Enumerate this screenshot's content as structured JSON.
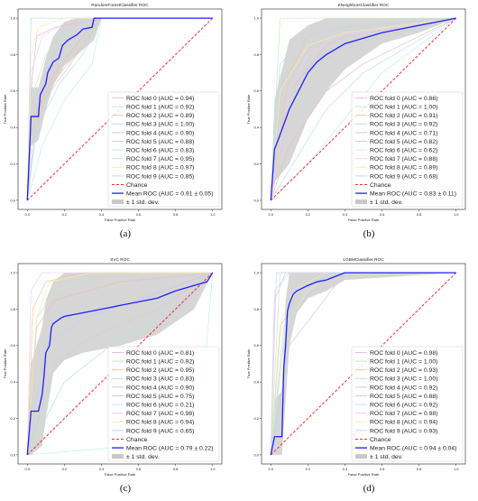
{
  "chart_data": [
    {
      "type": "line",
      "title": "RandomForestClassifier ROC",
      "xlabel": "False Positive Rate",
      "ylabel": "True Positive Rate",
      "xlim": [
        -0.05,
        1.05
      ],
      "ylim": [
        -0.05,
        1.05
      ],
      "xticks": [
        "0.0",
        "0.2",
        "0.4",
        "0.6",
        "0.8",
        "1.0"
      ],
      "yticks": [
        "0.0",
        "0.2",
        "0.4",
        "0.6",
        "0.8",
        "1.0"
      ],
      "legend_placement": "lower-right",
      "caption": "(a)",
      "legend": [
        "ROC fold 0 (AUC = 0.94)",
        "ROC fold 1 (AUC = 0.92)",
        "ROC fold 2 (AUC = 0.89)",
        "ROC fold 3 (AUC = 1.00)",
        "ROC fold 4 (AUC = 0.90)",
        "ROC fold 5 (AUC = 0.88)",
        "ROC fold 6 (AUC = 0.83)",
        "ROC fold 7 (AUC = 0.95)",
        "ROC fold 8 (AUC = 0.97)",
        "ROC fold 9 (AUC = 0.85)",
        "Chance",
        "Mean ROC (AUC = 0.91 ± 0.05)",
        "± 1 std. dev."
      ],
      "mean_roc": {
        "x": [
          0,
          0.02,
          0.06,
          0.07,
          0.1,
          0.11,
          0.13,
          0.14,
          0.17,
          0.19,
          0.2,
          0.22,
          0.27,
          0.3,
          0.35,
          0.36,
          0.4,
          1.0
        ],
        "y": [
          0,
          0.46,
          0.46,
          0.58,
          0.64,
          0.7,
          0.74,
          0.76,
          0.78,
          0.85,
          0.86,
          0.88,
          0.91,
          0.94,
          0.95,
          1.0,
          1.0,
          1.0
        ]
      },
      "std_band": {
        "x": [
          0,
          0.02,
          0.06,
          0.1,
          0.14,
          0.2,
          0.27,
          0.36,
          0.4,
          1.0
        ],
        "lower": [
          0,
          0.3,
          0.33,
          0.5,
          0.63,
          0.74,
          0.8,
          0.88,
          1.0,
          1.0
        ],
        "upper": [
          0,
          0.62,
          0.62,
          0.78,
          0.9,
          0.98,
          1.0,
          1.0,
          1.0,
          1.0
        ]
      },
      "folds": [
        {
          "x": [
            0,
            0.02,
            0.05,
            0.15,
            0.4,
            1
          ],
          "y": [
            0,
            0.6,
            0.9,
            0.95,
            1,
            1
          ]
        },
        {
          "x": [
            0,
            0.02,
            0.1,
            0.2,
            0.35,
            1
          ],
          "y": [
            0,
            0.55,
            0.8,
            0.9,
            1,
            1
          ]
        },
        {
          "x": [
            0,
            0.05,
            0.1,
            0.3,
            0.4,
            1
          ],
          "y": [
            0,
            0.4,
            0.6,
            0.85,
            1,
            1
          ]
        },
        {
          "x": [
            0,
            0.02,
            1
          ],
          "y": [
            0,
            1,
            1
          ]
        },
        {
          "x": [
            0,
            0.03,
            0.15,
            0.3,
            0.38,
            1
          ],
          "y": [
            0,
            0.45,
            0.7,
            0.9,
            1,
            1
          ]
        },
        {
          "x": [
            0,
            0.05,
            0.2,
            0.3,
            0.4,
            1
          ],
          "y": [
            0,
            0.5,
            0.7,
            0.85,
            1,
            1
          ]
        },
        {
          "x": [
            0,
            0.08,
            0.2,
            0.35,
            0.4,
            1
          ],
          "y": [
            0,
            0.3,
            0.55,
            0.75,
            1,
            1
          ]
        },
        {
          "x": [
            0,
            0.02,
            0.08,
            0.25,
            1
          ],
          "y": [
            0,
            0.7,
            0.9,
            1,
            1
          ]
        },
        {
          "x": [
            0,
            0.02,
            0.06,
            0.2,
            1
          ],
          "y": [
            0,
            0.8,
            0.95,
            1,
            1
          ]
        },
        {
          "x": [
            0,
            0.05,
            0.18,
            0.3,
            0.4,
            1
          ],
          "y": [
            0,
            0.4,
            0.65,
            0.8,
            1,
            1
          ]
        }
      ]
    },
    {
      "type": "line",
      "title": "KNeighborsClassifier ROC",
      "xlabel": "False Positive Rate",
      "ylabel": "True Positive Rate",
      "xlim": [
        -0.05,
        1.05
      ],
      "ylim": [
        -0.05,
        1.05
      ],
      "xticks": [
        "0.0",
        "0.2",
        "0.4",
        "0.6",
        "0.8",
        "1.0"
      ],
      "yticks": [
        "0.0",
        "0.2",
        "0.4",
        "0.6",
        "0.8",
        "1.0"
      ],
      "legend_placement": "lower-right",
      "caption": "(b)",
      "legend": [
        "ROC fold 0 (AUC = 0.86)",
        "ROC fold 1 (AUC = 1.00)",
        "ROC fold 2 (AUC = 0.91)",
        "ROC fold 3 (AUC = 0.92)",
        "ROC fold 4 (AUC = 0.71)",
        "ROC fold 5 (AUC = 0.82)",
        "ROC fold 6 (AUC = 0.62)",
        "ROC fold 7 (AUC = 0.88)",
        "ROC fold 8 (AUC = 0.89)",
        "ROC fold 9 (AUC = 0.68)",
        "Chance",
        "Mean ROC (AUC = 0.83 ± 0.11)",
        "± 1 std. dev."
      ],
      "mean_roc": {
        "x": [
          0,
          0.02,
          0.05,
          0.1,
          0.15,
          0.2,
          0.25,
          0.3,
          0.4,
          0.6,
          0.8,
          1.0
        ],
        "y": [
          0,
          0.28,
          0.36,
          0.5,
          0.6,
          0.7,
          0.76,
          0.8,
          0.86,
          0.92,
          0.96,
          1.0
        ]
      },
      "std_band": {
        "x": [
          0,
          0.02,
          0.1,
          0.2,
          0.3,
          0.4,
          0.6,
          0.8,
          1.0
        ],
        "lower": [
          0,
          0.1,
          0.2,
          0.45,
          0.6,
          0.72,
          0.86,
          0.92,
          1.0
        ],
        "upper": [
          0,
          0.55,
          0.88,
          0.96,
          1.0,
          1.0,
          1.0,
          1.0,
          1.0
        ]
      },
      "folds": [
        {
          "x": [
            0,
            0.1,
            0.3,
            0.4,
            1
          ],
          "y": [
            0,
            0.6,
            0.85,
            0.9,
            1
          ]
        },
        {
          "x": [
            0,
            0.05,
            1
          ],
          "y": [
            0,
            1,
            1
          ]
        },
        {
          "x": [
            0,
            0.1,
            0.2,
            0.4,
            1
          ],
          "y": [
            0,
            0.7,
            0.9,
            0.95,
            1
          ]
        },
        {
          "x": [
            0,
            0.05,
            0.2,
            0.4,
            1
          ],
          "y": [
            0,
            0.75,
            0.9,
            0.95,
            1
          ]
        },
        {
          "x": [
            0,
            0.1,
            0.3,
            0.5,
            1
          ],
          "y": [
            0,
            0.3,
            0.6,
            0.75,
            1
          ]
        },
        {
          "x": [
            0,
            0.1,
            0.2,
            0.4,
            1
          ],
          "y": [
            0,
            0.5,
            0.7,
            0.85,
            1
          ]
        },
        {
          "x": [
            0,
            0.2,
            0.4,
            0.6,
            1
          ],
          "y": [
            0,
            0.2,
            0.45,
            0.7,
            1
          ]
        },
        {
          "x": [
            0,
            0.1,
            0.2,
            0.35,
            1
          ],
          "y": [
            0,
            0.6,
            0.8,
            0.9,
            1
          ]
        },
        {
          "x": [
            0,
            0.05,
            0.2,
            0.4,
            1
          ],
          "y": [
            0,
            0.6,
            0.85,
            0.92,
            1
          ]
        },
        {
          "x": [
            0,
            0.15,
            0.3,
            0.5,
            1
          ],
          "y": [
            0,
            0.25,
            0.5,
            0.7,
            1
          ]
        }
      ]
    },
    {
      "type": "line",
      "title": "SVC ROC",
      "xlabel": "False Positive Rate",
      "ylabel": "True Positive Rate",
      "xlim": [
        -0.05,
        1.05
      ],
      "ylim": [
        -0.05,
        1.05
      ],
      "xticks": [
        "0.0",
        "0.2",
        "0.4",
        "0.6",
        "0.8",
        "1.0"
      ],
      "yticks": [
        "0.0",
        "0.2",
        "0.4",
        "0.6",
        "0.8",
        "1.0"
      ],
      "legend_placement": "lower-right",
      "caption": "(c)",
      "legend": [
        "ROC fold 0 (AUC = 0.81)",
        "ROC fold 1 (AUC = 0.92)",
        "ROC fold 2 (AUC = 0.95)",
        "ROC fold 3 (AUC = 0.83)",
        "ROC fold 4 (AUC = 0.90)",
        "ROC fold 5 (AUC = 0.75)",
        "ROC fold 6 (AUC = 0.21)",
        "ROC fold 7 (AUC = 0.98)",
        "ROC fold 8 (AUC = 0.94)",
        "ROC fold 9 (AUC = 0.65)",
        "Chance",
        "Mean ROC (AUC = 0.79 ± 0.22)",
        "± 1 std. dev."
      ],
      "mean_roc": {
        "x": [
          0,
          0.02,
          0.06,
          0.08,
          0.09,
          0.1,
          0.12,
          0.13,
          0.14,
          0.18,
          0.2,
          0.3,
          0.4,
          0.5,
          0.6,
          0.7,
          0.8,
          0.9,
          0.97,
          1.0
        ],
        "y": [
          0,
          0.24,
          0.24,
          0.33,
          0.43,
          0.56,
          0.6,
          0.7,
          0.72,
          0.75,
          0.76,
          0.78,
          0.8,
          0.82,
          0.84,
          0.86,
          0.9,
          0.93,
          0.95,
          1.0
        ]
      },
      "std_band": {
        "x": [
          0,
          0.02,
          0.08,
          0.1,
          0.14,
          0.2,
          0.3,
          0.5,
          0.7,
          0.9,
          1.0
        ],
        "lower": [
          0,
          0.0,
          0.05,
          0.2,
          0.45,
          0.52,
          0.56,
          0.6,
          0.66,
          0.8,
          1.0
        ],
        "upper": [
          0,
          0.5,
          0.7,
          0.85,
          0.95,
          1.0,
          1.0,
          1.0,
          1.0,
          1.0,
          1.0
        ]
      },
      "folds": [
        {
          "x": [
            0,
            0.1,
            0.3,
            0.6,
            1
          ],
          "y": [
            0,
            0.6,
            0.75,
            0.85,
            1
          ]
        },
        {
          "x": [
            0,
            0.05,
            0.15,
            0.4,
            1
          ],
          "y": [
            0,
            0.75,
            0.9,
            1,
            1
          ]
        },
        {
          "x": [
            0,
            0.03,
            0.1,
            0.3,
            1
          ],
          "y": [
            0,
            0.8,
            0.95,
            1,
            1
          ]
        },
        {
          "x": [
            0,
            0.1,
            0.3,
            0.7,
            1
          ],
          "y": [
            0,
            0.6,
            0.75,
            0.9,
            1
          ]
        },
        {
          "x": [
            0,
            0.05,
            0.15,
            0.5,
            1
          ],
          "y": [
            0,
            0.7,
            0.85,
            0.95,
            1
          ]
        },
        {
          "x": [
            0,
            0.15,
            0.35,
            0.7,
            1
          ],
          "y": [
            0,
            0.5,
            0.65,
            0.8,
            1
          ]
        },
        {
          "x": [
            0,
            0.6,
            0.8,
            0.95,
            1
          ],
          "y": [
            0,
            0.05,
            0.15,
            0.4,
            1
          ]
        },
        {
          "x": [
            0,
            0.02,
            0.08,
            1
          ],
          "y": [
            0,
            0.9,
            1,
            1
          ]
        },
        {
          "x": [
            0,
            0.05,
            0.12,
            0.35,
            1
          ],
          "y": [
            0,
            0.75,
            0.95,
            1,
            1
          ]
        },
        {
          "x": [
            0,
            0.2,
            0.45,
            0.8,
            1
          ],
          "y": [
            0,
            0.4,
            0.6,
            0.8,
            1
          ]
        }
      ]
    },
    {
      "type": "line",
      "title": "LGBMClassifier ROC",
      "xlabel": "False Positive Rate",
      "ylabel": "True Positive Rate",
      "xlim": [
        -0.05,
        1.05
      ],
      "ylim": [
        -0.05,
        1.05
      ],
      "xticks": [
        "0.0",
        "0.2",
        "0.4",
        "0.6",
        "0.8",
        "1.0"
      ],
      "yticks": [
        "0.0",
        "0.2",
        "0.4",
        "0.6",
        "0.8",
        "1.0"
      ],
      "legend_placement": "lower-right",
      "caption": "(d)",
      "legend": [
        "ROC fold 0 (AUC = 0.98)",
        "ROC fold 1 (AUC = 1.00)",
        "ROC fold 2 (AUC = 0.93)",
        "ROC fold 3 (AUC = 1.00)",
        "ROC fold 4 (AUC = 0.92)",
        "ROC fold 5 (AUC = 0.88)",
        "ROC fold 6 (AUC = 0.92)",
        "ROC fold 7 (AUC = 0.98)",
        "ROC fold 8 (AUC = 0.94)",
        "ROC fold 9 (AUC = 0.93)",
        "Chance",
        "Mean ROC (AUC = 0.94 ± 0.04)",
        "± 1 std. dev."
      ],
      "mean_roc": {
        "x": [
          0,
          0.02,
          0.06,
          0.07,
          0.08,
          0.09,
          0.1,
          0.12,
          0.14,
          0.2,
          0.25,
          0.3,
          0.35,
          0.4,
          1.0
        ],
        "y": [
          0,
          0.1,
          0.1,
          0.48,
          0.6,
          0.79,
          0.83,
          0.88,
          0.9,
          0.93,
          0.95,
          0.96,
          0.98,
          1.0,
          1.0
        ]
      },
      "std_band": {
        "x": [
          0,
          0.02,
          0.06,
          0.08,
          0.1,
          0.14,
          0.2,
          0.3,
          0.4,
          1.0
        ],
        "lower": [
          0,
          0.0,
          0.0,
          0.3,
          0.6,
          0.78,
          0.86,
          0.9,
          0.96,
          1.0
        ],
        "upper": [
          0,
          0.3,
          0.35,
          0.85,
          1.0,
          1.0,
          1.0,
          1.0,
          1.0,
          1.0
        ]
      },
      "folds": [
        {
          "x": [
            0,
            0.02,
            0.08,
            1
          ],
          "y": [
            0,
            0.85,
            1,
            1
          ]
        },
        {
          "x": [
            0,
            0.05,
            1
          ],
          "y": [
            0,
            1,
            1
          ]
        },
        {
          "x": [
            0,
            0.05,
            0.15,
            0.3,
            1
          ],
          "y": [
            0,
            0.7,
            0.9,
            1,
            1
          ]
        },
        {
          "x": [
            0,
            0.03,
            1
          ],
          "y": [
            0,
            1,
            1
          ]
        },
        {
          "x": [
            0,
            0.08,
            0.2,
            0.35,
            1
          ],
          "y": [
            0,
            0.7,
            0.88,
            1,
            1
          ]
        },
        {
          "x": [
            0,
            0.1,
            0.25,
            0.4,
            1
          ],
          "y": [
            0,
            0.6,
            0.8,
            1,
            1
          ]
        },
        {
          "x": [
            0,
            0.08,
            0.2,
            0.35,
            1
          ],
          "y": [
            0,
            0.7,
            0.9,
            1,
            1
          ]
        },
        {
          "x": [
            0,
            0.02,
            0.1,
            1
          ],
          "y": [
            0,
            0.9,
            1,
            1
          ]
        },
        {
          "x": [
            0,
            0.06,
            0.15,
            0.3,
            1
          ],
          "y": [
            0,
            0.75,
            0.92,
            1,
            1
          ]
        },
        {
          "x": [
            0,
            0.07,
            0.15,
            0.3,
            1
          ],
          "y": [
            0,
            0.7,
            0.9,
            1,
            1
          ]
        }
      ]
    }
  ],
  "colors": {
    "mean": "#1f1fff",
    "chance": "#ff2a2a",
    "band": "#c8c8c8",
    "folds": [
      "#e8bfd9",
      "#c8e8c8",
      "#f2c8a0",
      "#c0d8f0",
      "#e8c0c0",
      "#d0d0d0",
      "#c0f0e8",
      "#f0d0f0",
      "#f0f0b0",
      "#b8e0f0"
    ]
  }
}
